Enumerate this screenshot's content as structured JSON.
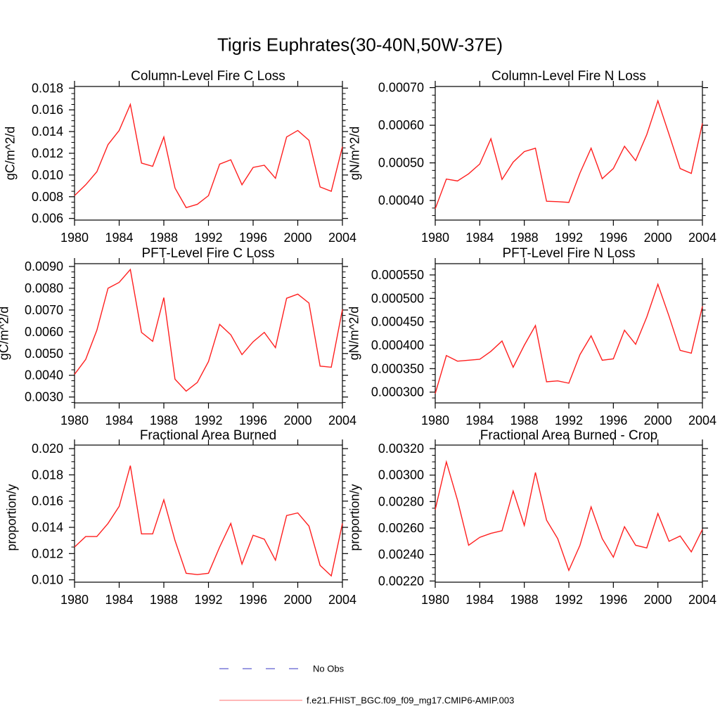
{
  "figure": {
    "title": "Tigris Euphrates(30-40N,50W-37E)",
    "background": "#ffffff"
  },
  "colors": {
    "series": "#ff1f1f",
    "axis": "#000000",
    "legend_no_obs": "#7a7ad9",
    "legend_model": "#ff8c8c"
  },
  "legend": {
    "items": [
      {
        "label": "No Obs",
        "line_style": "dashed",
        "color": "#7a7ad9"
      },
      {
        "label": "f.e21.FHIST_BGC.f09_f09_mg17.CMIP6-AMIP.003",
        "line_style": "solid",
        "color": "#ff8c8c"
      }
    ]
  },
  "chart_data": [
    {
      "type": "line",
      "title": "Column-Level Fire C Loss",
      "ylabel": "gC/m^2/d",
      "xlabel": "",
      "grid": false,
      "legend_position": "none",
      "xlim": [
        1980,
        2004
      ],
      "ylim": [
        0.00585,
        0.01815
      ],
      "xticks": [
        1980,
        1984,
        1988,
        1992,
        1996,
        2000,
        2004
      ],
      "ytick_values": [
        0.006,
        0.008,
        0.01,
        0.012,
        0.014,
        0.016,
        0.018
      ],
      "ytick_labels": [
        "0.006",
        "0.008",
        "0.010",
        "0.012",
        "0.014",
        "0.016",
        "0.018"
      ],
      "y_minor_step": 0.0005,
      "x": [
        1980,
        1981,
        1982,
        1983,
        1984,
        1985,
        1986,
        1987,
        1988,
        1989,
        1990,
        1991,
        1992,
        1993,
        1994,
        1995,
        1996,
        1997,
        1998,
        1999,
        2000,
        2001,
        2002,
        2003,
        2004
      ],
      "series": [
        {
          "name": "f.e21.FHIST_BGC.f09_f09_mg17.CMIP6-AMIP.003",
          "values": [
            0.0081,
            0.0091,
            0.0103,
            0.0128,
            0.0141,
            0.0165,
            0.0111,
            0.0108,
            0.0135,
            0.0088,
            0.007,
            0.0073,
            0.0081,
            0.011,
            0.0114,
            0.0091,
            0.0107,
            0.0109,
            0.0097,
            0.0135,
            0.0141,
            0.0132,
            0.0089,
            0.0085,
            0.0126
          ]
        }
      ]
    },
    {
      "type": "line",
      "title": "Column-Level Fire N Loss",
      "ylabel": "gN/m^2/d",
      "xlabel": "",
      "grid": false,
      "legend_position": "none",
      "xlim": [
        1980,
        2004
      ],
      "ylim": [
        0.000348,
        0.000703
      ],
      "xticks": [
        1980,
        1984,
        1988,
        1992,
        1996,
        2000,
        2004
      ],
      "ytick_values": [
        0.0004,
        0.0005,
        0.0006,
        0.0007
      ],
      "ytick_labels": [
        "0.00040",
        "0.00050",
        "0.00060",
        "0.00070"
      ],
      "y_minor_step": 2e-05,
      "x": [
        1980,
        1981,
        1982,
        1983,
        1984,
        1985,
        1986,
        1987,
        1988,
        1989,
        1990,
        1991,
        1992,
        1993,
        1994,
        1995,
        1996,
        1997,
        1998,
        1999,
        2000,
        2001,
        2002,
        2003,
        2004
      ],
      "series": [
        {
          "name": "f.e21.FHIST_BGC.f09_f09_mg17.CMIP6-AMIP.003",
          "values": [
            0.000378,
            0.000457,
            0.000452,
            0.000471,
            0.000497,
            0.000564,
            0.000456,
            0.000502,
            0.00053,
            0.000539,
            0.000398,
            0.000397,
            0.000395,
            0.000473,
            0.000539,
            0.000458,
            0.000485,
            0.000544,
            0.000506,
            0.000575,
            0.000665,
            0.000576,
            0.000485,
            0.000472,
            0.000605
          ]
        }
      ]
    },
    {
      "type": "line",
      "title": "PFT-Level Fire C Loss",
      "ylabel": "gC/m^2/d",
      "xlabel": "",
      "grid": false,
      "legend_position": "none",
      "xlim": [
        1980,
        2004
      ],
      "ylim": [
        0.00273,
        0.00913
      ],
      "xticks": [
        1980,
        1984,
        1988,
        1992,
        1996,
        2000,
        2004
      ],
      "ytick_values": [
        0.003,
        0.004,
        0.005,
        0.006,
        0.007,
        0.008,
        0.009
      ],
      "ytick_labels": [
        "0.0030",
        "0.0040",
        "0.0050",
        "0.0060",
        "0.0070",
        "0.0080",
        "0.0090"
      ],
      "y_minor_step": 0.00025,
      "x": [
        1980,
        1981,
        1982,
        1983,
        1984,
        1985,
        1986,
        1987,
        1988,
        1989,
        1990,
        1991,
        1992,
        1993,
        1994,
        1995,
        1996,
        1997,
        1998,
        1999,
        2000,
        2001,
        2002,
        2003,
        2004
      ],
      "series": [
        {
          "name": "f.e21.FHIST_BGC.f09_f09_mg17.CMIP6-AMIP.003",
          "values": [
            0.00404,
            0.00473,
            0.00607,
            0.008,
            0.00827,
            0.00886,
            0.00597,
            0.00556,
            0.00757,
            0.00382,
            0.00327,
            0.00367,
            0.00463,
            0.00634,
            0.00586,
            0.00495,
            0.00554,
            0.00597,
            0.00527,
            0.00754,
            0.00773,
            0.00732,
            0.00442,
            0.00437,
            0.00703
          ]
        }
      ]
    },
    {
      "type": "line",
      "title": "PFT-Level Fire N Loss",
      "ylabel": "gN/m^2/d",
      "xlabel": "",
      "grid": false,
      "legend_position": "none",
      "xlim": [
        1980,
        2004
      ],
      "ylim": [
        0.000277,
        0.000574
      ],
      "xticks": [
        1980,
        1984,
        1988,
        1992,
        1996,
        2000,
        2004
      ],
      "ytick_values": [
        0.0003,
        0.00035,
        0.0004,
        0.00045,
        0.0005,
        0.00055
      ],
      "ytick_labels": [
        "0.000300",
        "0.000350",
        "0.000400",
        "0.000450",
        "0.000500",
        "0.000550"
      ],
      "y_minor_step": 1.25e-05,
      "x": [
        1980,
        1981,
        1982,
        1983,
        1984,
        1985,
        1986,
        1987,
        1988,
        1989,
        1990,
        1991,
        1992,
        1993,
        1994,
        1995,
        1996,
        1997,
        1998,
        1999,
        2000,
        2001,
        2002,
        2003,
        2004
      ],
      "series": [
        {
          "name": "f.e21.FHIST_BGC.f09_f09_mg17.CMIP6-AMIP.003",
          "values": [
            0.000297,
            0.000378,
            0.000366,
            0.000368,
            0.00037,
            0.000387,
            0.000409,
            0.000353,
            0.0004,
            0.000442,
            0.000322,
            0.000324,
            0.000319,
            0.00038,
            0.00042,
            0.000368,
            0.000371,
            0.000432,
            0.000402,
            0.00046,
            0.00053,
            0.000462,
            0.000389,
            0.000383,
            0.000483
          ]
        }
      ]
    },
    {
      "type": "line",
      "title": "Fractional Area Burned",
      "ylabel": "proportion/y",
      "xlabel": "",
      "grid": false,
      "legend_position": "none",
      "xlim": [
        1980,
        2004
      ],
      "ylim": [
        0.00982,
        0.02027
      ],
      "xticks": [
        1980,
        1984,
        1988,
        1992,
        1996,
        2000,
        2004
      ],
      "ytick_values": [
        0.01,
        0.012,
        0.014,
        0.016,
        0.018,
        0.02
      ],
      "ytick_labels": [
        "0.010",
        "0.012",
        "0.014",
        "0.016",
        "0.018",
        "0.020"
      ],
      "y_minor_step": 0.0005,
      "x": [
        1980,
        1981,
        1982,
        1983,
        1984,
        1985,
        1986,
        1987,
        1988,
        1989,
        1990,
        1991,
        1992,
        1993,
        1994,
        1995,
        1996,
        1997,
        1998,
        1999,
        2000,
        2001,
        2002,
        2003,
        2004
      ],
      "series": [
        {
          "name": "f.e21.FHIST_BGC.f09_f09_mg17.CMIP6-AMIP.003",
          "values": [
            0.0125,
            0.0133,
            0.0133,
            0.0143,
            0.0156,
            0.0187,
            0.0135,
            0.0135,
            0.0161,
            0.013,
            0.0105,
            0.0104,
            0.0105,
            0.0125,
            0.0143,
            0.0112,
            0.0134,
            0.0131,
            0.0115,
            0.0149,
            0.0151,
            0.0141,
            0.0111,
            0.0103,
            0.0143
          ]
        }
      ]
    },
    {
      "type": "line",
      "title": "Fractional Area Burned - Crop",
      "ylabel": "proportion/y",
      "xlabel": "",
      "grid": false,
      "legend_position": "none",
      "xlim": [
        1980,
        2004
      ],
      "ylim": [
        0.002191,
        0.003227
      ],
      "xticks": [
        1980,
        1984,
        1988,
        1992,
        1996,
        2000,
        2004
      ],
      "ytick_values": [
        0.0022,
        0.0024,
        0.0026,
        0.0028,
        0.003,
        0.0032
      ],
      "ytick_labels": [
        "0.00220",
        "0.00240",
        "0.00260",
        "0.00280",
        "0.00300",
        "0.00320"
      ],
      "y_minor_step": 5e-05,
      "x": [
        1980,
        1981,
        1982,
        1983,
        1984,
        1985,
        1986,
        1987,
        1988,
        1989,
        1990,
        1991,
        1992,
        1993,
        1994,
        1995,
        1996,
        1997,
        1998,
        1999,
        2000,
        2001,
        2002,
        2003,
        2004
      ],
      "series": [
        {
          "name": "f.e21.FHIST_BGC.f09_f09_mg17.CMIP6-AMIP.003",
          "values": [
            0.00274,
            0.0031,
            0.00281,
            0.00247,
            0.00253,
            0.00256,
            0.00258,
            0.00288,
            0.00262,
            0.00302,
            0.00266,
            0.00252,
            0.00228,
            0.00247,
            0.00276,
            0.00252,
            0.00238,
            0.00261,
            0.00247,
            0.00245,
            0.00271,
            0.0025,
            0.00254,
            0.00242,
            0.00259
          ]
        }
      ]
    }
  ]
}
